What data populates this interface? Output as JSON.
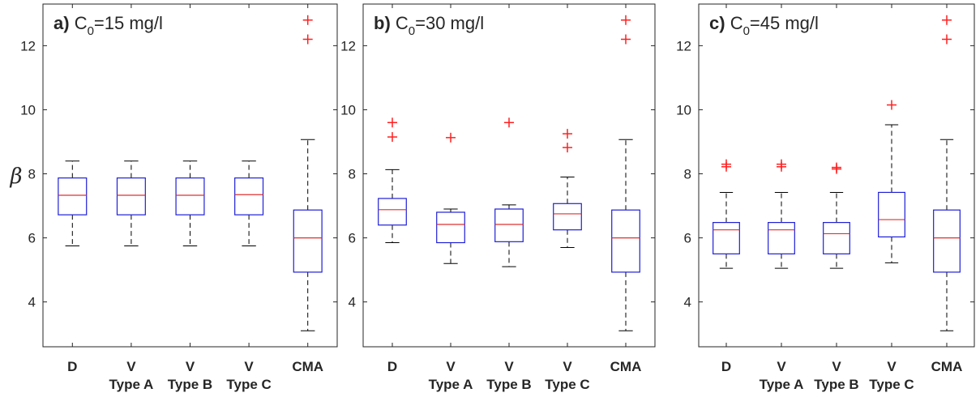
{
  "colors": {
    "box": "#1f1fd6",
    "median": "#e03030",
    "outlier": "#ff2020",
    "whisker": "#000000",
    "axis": "#262626"
  },
  "y_axis_label": "β",
  "chart_data": [
    {
      "type": "boxplot",
      "panel_tag": "a)",
      "title_parts": {
        "pre": "C",
        "sub": "0",
        "post": "=15 mg/l"
      },
      "ylim": [
        2.6,
        13.3
      ],
      "yticks": [
        "4",
        "6",
        "8",
        "10",
        "12"
      ],
      "tick_values": [
        4,
        6,
        8,
        10,
        12
      ],
      "categories": [
        {
          "line1": "D",
          "line2": ""
        },
        {
          "line1": "V",
          "line2": "Type A"
        },
        {
          "line1": "V",
          "line2": "Type B"
        },
        {
          "line1": "V",
          "line2": "Type C"
        },
        {
          "line1": "CMA",
          "line2": ""
        }
      ],
      "boxes": [
        {
          "whisker_low": 5.75,
          "q1": 6.72,
          "median": 7.33,
          "q3": 7.87,
          "whisker_high": 8.4,
          "outliers": []
        },
        {
          "whisker_low": 5.75,
          "q1": 6.72,
          "median": 7.33,
          "q3": 7.87,
          "whisker_high": 8.4,
          "outliers": []
        },
        {
          "whisker_low": 5.75,
          "q1": 6.72,
          "median": 7.33,
          "q3": 7.87,
          "whisker_high": 8.4,
          "outliers": []
        },
        {
          "whisker_low": 5.75,
          "q1": 6.72,
          "median": 7.35,
          "q3": 7.87,
          "whisker_high": 8.4,
          "outliers": []
        },
        {
          "whisker_low": 3.1,
          "q1": 4.93,
          "median": 6.0,
          "q3": 6.87,
          "whisker_high": 9.07,
          "outliers": [
            12.2,
            12.8
          ]
        }
      ]
    },
    {
      "type": "boxplot",
      "panel_tag": "b)",
      "title_parts": {
        "pre": "C",
        "sub": "0",
        "post": "=30 mg/l"
      },
      "ylim": [
        2.6,
        13.3
      ],
      "yticks": [
        "4",
        "6",
        "8",
        "10",
        "12"
      ],
      "tick_values": [
        4,
        6,
        8,
        10,
        12
      ],
      "categories": [
        {
          "line1": "D",
          "line2": ""
        },
        {
          "line1": "V",
          "line2": "Type A"
        },
        {
          "line1": "V",
          "line2": "Type B"
        },
        {
          "line1": "V",
          "line2": "Type C"
        },
        {
          "line1": "CMA",
          "line2": ""
        }
      ],
      "boxes": [
        {
          "whisker_low": 5.85,
          "q1": 6.4,
          "median": 6.88,
          "q3": 7.23,
          "whisker_high": 8.13,
          "outliers": [
            9.15,
            9.6
          ]
        },
        {
          "whisker_low": 5.2,
          "q1": 5.85,
          "median": 6.42,
          "q3": 6.8,
          "whisker_high": 6.9,
          "outliers": [
            9.13
          ]
        },
        {
          "whisker_low": 5.1,
          "q1": 5.88,
          "median": 6.42,
          "q3": 6.9,
          "whisker_high": 7.03,
          "outliers": [
            9.6
          ]
        },
        {
          "whisker_low": 5.7,
          "q1": 6.25,
          "median": 6.75,
          "q3": 7.07,
          "whisker_high": 7.9,
          "outliers": [
            8.82,
            9.25
          ]
        },
        {
          "whisker_low": 3.1,
          "q1": 4.93,
          "median": 6.0,
          "q3": 6.87,
          "whisker_high": 9.07,
          "outliers": [
            12.2,
            12.8
          ]
        }
      ]
    },
    {
      "type": "boxplot",
      "panel_tag": "c)",
      "title_parts": {
        "pre": "C",
        "sub": "0",
        "post": "=45 mg/l"
      },
      "ylim": [
        2.6,
        13.3
      ],
      "yticks": [
        "4",
        "6",
        "8",
        "10",
        "12"
      ],
      "tick_values": [
        4,
        6,
        8,
        10,
        12
      ],
      "categories": [
        {
          "line1": "D",
          "line2": ""
        },
        {
          "line1": "V",
          "line2": "Type A"
        },
        {
          "line1": "V",
          "line2": "Type B"
        },
        {
          "line1": "V",
          "line2": "Type C"
        },
        {
          "line1": "CMA",
          "line2": ""
        }
      ],
      "boxes": [
        {
          "whisker_low": 5.05,
          "q1": 5.5,
          "median": 6.25,
          "q3": 6.48,
          "whisker_high": 7.42,
          "outliers": [
            8.22,
            8.3
          ]
        },
        {
          "whisker_low": 5.05,
          "q1": 5.5,
          "median": 6.25,
          "q3": 6.48,
          "whisker_high": 7.42,
          "outliers": [
            8.22,
            8.3
          ]
        },
        {
          "whisker_low": 5.05,
          "q1": 5.5,
          "median": 6.13,
          "q3": 6.48,
          "whisker_high": 7.42,
          "outliers": [
            8.15,
            8.2
          ]
        },
        {
          "whisker_low": 5.22,
          "q1": 6.03,
          "median": 6.57,
          "q3": 7.42,
          "whisker_high": 9.53,
          "outliers": [
            10.15
          ]
        },
        {
          "whisker_low": 3.1,
          "q1": 4.93,
          "median": 6.0,
          "q3": 6.87,
          "whisker_high": 9.07,
          "outliers": [
            12.2,
            12.8
          ]
        }
      ]
    }
  ]
}
